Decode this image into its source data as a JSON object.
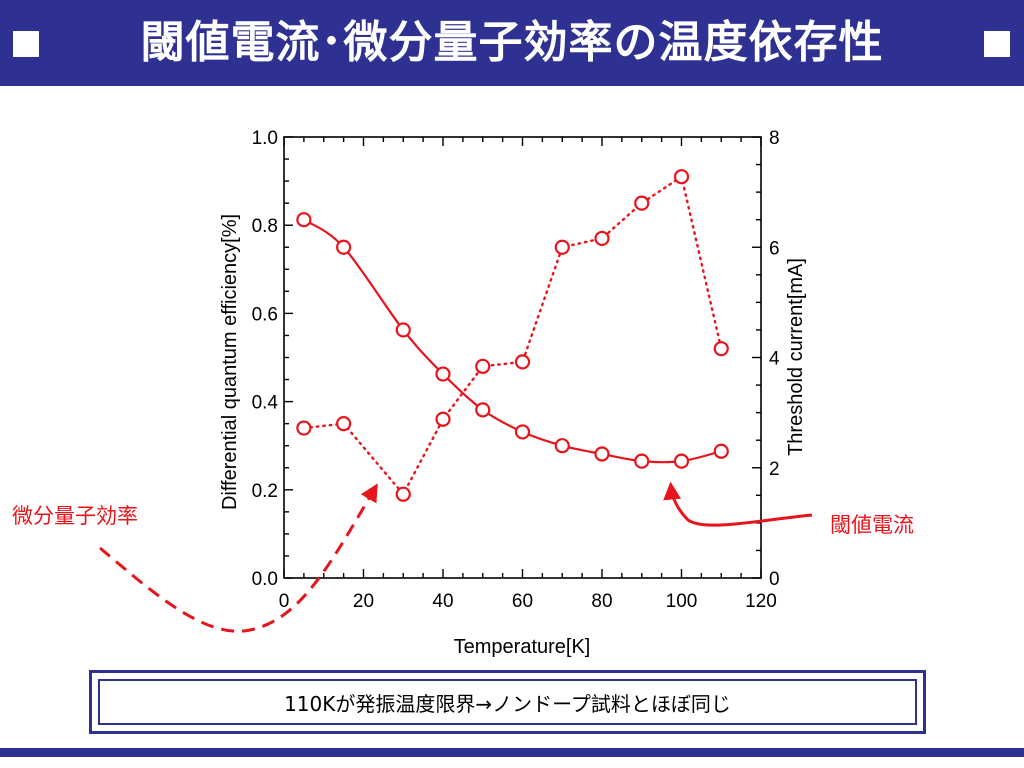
{
  "header": {
    "title": "閾値電流･微分量子効率の温度依存性"
  },
  "annotations": {
    "efficiency_label": "微分量子効率",
    "threshold_label": "閾値電流"
  },
  "note": {
    "text": "110Kが発振温度限界→ノンドープ試料とほぼ同じ"
  },
  "colors": {
    "header": "#2e3192",
    "series": "#e8141b"
  },
  "chart_data": {
    "type": "line",
    "xlabel": "Temperature[K]",
    "ylabel": "Differential quantum efficiency[%]",
    "y2label": "Threshold current[mA]",
    "xlim": [
      0,
      120
    ],
    "ylim": [
      0,
      1.0
    ],
    "y2lim": [
      0,
      8
    ],
    "xticks": [
      "0",
      "20",
      "40",
      "60",
      "80",
      "100",
      "120"
    ],
    "yticks": [
      "0.0",
      "0.2",
      "0.4",
      "0.6",
      "0.8",
      "1.0"
    ],
    "y2ticks": [
      "0",
      "2",
      "4",
      "6",
      "8"
    ],
    "grid": false,
    "series": [
      {
        "axis": "right",
        "style": "solid-curve",
        "x": [
          5,
          15,
          30,
          40,
          50,
          60,
          70,
          80,
          90,
          100,
          110
        ],
        "y": [
          6.5,
          6.0,
          4.5,
          3.7,
          3.05,
          2.65,
          2.4,
          2.25,
          2.12,
          2.12,
          2.3
        ]
      },
      {
        "axis": "left",
        "style": "dotted",
        "x": [
          5,
          15,
          30,
          40,
          50,
          60,
          70,
          80,
          90,
          100,
          110
        ],
        "y": [
          0.34,
          0.35,
          0.19,
          0.36,
          0.48,
          0.49,
          0.75,
          0.77,
          0.85,
          0.91,
          0.52
        ]
      }
    ]
  }
}
